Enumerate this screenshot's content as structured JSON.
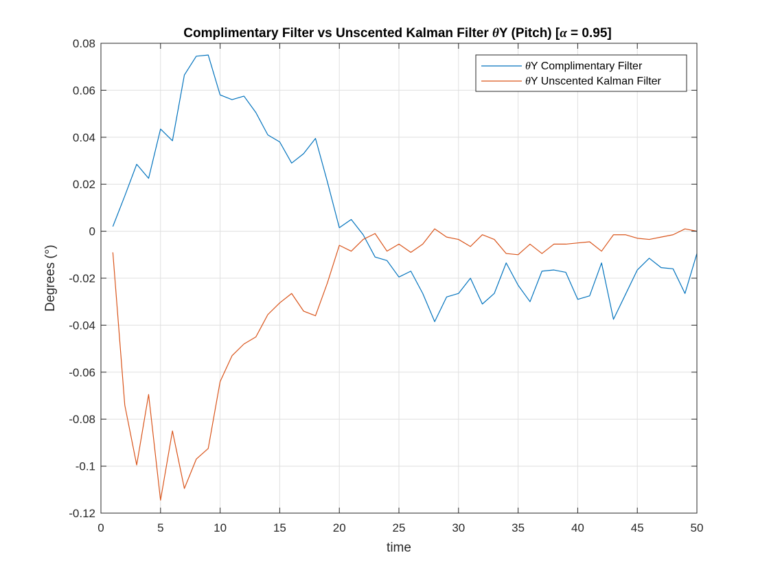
{
  "chart_data": {
    "type": "line",
    "title_parts": [
      "Complimentary Filter vs Unscented Kalman Filter ",
      "θ",
      "Y (Pitch) [",
      "α",
      " = 0.95]"
    ],
    "xlabel": "time",
    "ylabel": "Degrees (°)",
    "xlim": [
      0,
      50
    ],
    "ylim": [
      -0.12,
      0.08
    ],
    "xticks": [
      0,
      5,
      10,
      15,
      20,
      25,
      30,
      35,
      40,
      45,
      50
    ],
    "xtick_labels": [
      "0",
      "5",
      "10",
      "15",
      "20",
      "25",
      "30",
      "35",
      "40",
      "45",
      "50"
    ],
    "yticks": [
      0.08,
      0.06,
      0.04,
      0.02,
      0,
      -0.02,
      -0.04,
      -0.06,
      -0.08,
      -0.1,
      -0.12
    ],
    "ytick_labels": [
      "0.08",
      "0.06",
      "0.04",
      "0.02",
      "0",
      "-0.02",
      "-0.04",
      "-0.06",
      "-0.08",
      "-0.1",
      "-0.12"
    ],
    "grid": true,
    "legend_position": "top-right",
    "x": [
      1,
      2,
      3,
      4,
      5,
      6,
      7,
      8,
      9,
      10,
      11,
      12,
      13,
      14,
      15,
      16,
      17,
      18,
      19,
      20,
      21,
      22,
      23,
      24,
      25,
      26,
      27,
      28,
      29,
      30,
      31,
      32,
      33,
      34,
      35,
      36,
      37,
      38,
      39,
      40,
      41,
      42,
      43,
      44,
      45,
      46,
      47,
      48,
      49,
      50
    ],
    "series": [
      {
        "name_parts": [
          "θ",
          "Y Complimentary Filter"
        ],
        "color": "#0072BD",
        "values": [
          0.002,
          0.015,
          0.0285,
          0.0225,
          0.0435,
          0.0385,
          0.0665,
          0.0745,
          0.075,
          0.058,
          0.056,
          0.0575,
          0.0505,
          0.041,
          0.038,
          0.029,
          0.033,
          0.0395,
          0.021,
          0.0015,
          0.005,
          -0.0015,
          -0.011,
          -0.0125,
          -0.0195,
          -0.017,
          -0.0265,
          -0.0385,
          -0.028,
          -0.0265,
          -0.02,
          -0.031,
          -0.0265,
          -0.0135,
          -0.023,
          -0.03,
          -0.017,
          -0.0165,
          -0.0175,
          -0.029,
          -0.0275,
          -0.0135,
          -0.0375,
          -0.027,
          -0.0165,
          -0.0115,
          -0.0155,
          -0.016,
          -0.0265,
          -0.0095
        ]
      },
      {
        "name_parts": [
          "θ",
          "Y Unscented Kalman Filter"
        ],
        "color": "#D95319",
        "values": [
          -0.009,
          -0.074,
          -0.0995,
          -0.0695,
          -0.1145,
          -0.085,
          -0.1095,
          -0.097,
          -0.0925,
          -0.064,
          -0.053,
          -0.048,
          -0.045,
          -0.0355,
          -0.0305,
          -0.0265,
          -0.034,
          -0.036,
          -0.022,
          -0.006,
          -0.0085,
          -0.0035,
          -0.001,
          -0.0085,
          -0.0055,
          -0.009,
          -0.0055,
          0.001,
          -0.0025,
          -0.0035,
          -0.0065,
          -0.0015,
          -0.0035,
          -0.0095,
          -0.01,
          -0.0055,
          -0.0095,
          -0.0055,
          -0.0055,
          -0.005,
          -0.0045,
          -0.0085,
          -0.0015,
          -0.0015,
          -0.003,
          -0.0035,
          -0.0025,
          -0.0015,
          0.001,
          0.0
        ]
      }
    ]
  }
}
